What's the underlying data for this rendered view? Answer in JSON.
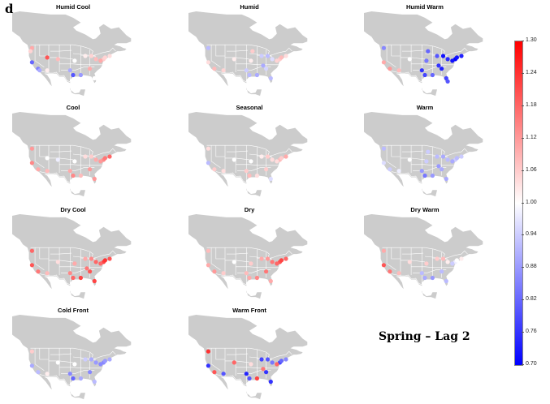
{
  "panel_label": "d",
  "caption": "Spring – Lag 2",
  "colors": {
    "low": "#0000ff",
    "mid": "#ffffff",
    "high": "#ff0000",
    "land": "#cccccc",
    "borders": "#ffffff"
  },
  "colorbar": {
    "min": 0.7,
    "max": 1.3,
    "ticks": [
      "1.30",
      "1.24",
      "1.18",
      "1.12",
      "1.06",
      "1.00",
      "0.94",
      "0.88",
      "0.82",
      "0.76",
      "0.70"
    ]
  },
  "maps": [
    {
      "title": "Humid Cool",
      "points": [
        [
          -122,
          47,
          1.1
        ],
        [
          -123,
          45,
          1.05
        ],
        [
          -122,
          38,
          0.82
        ],
        [
          -118,
          34,
          0.85
        ],
        [
          -117,
          33,
          0.9
        ],
        [
          -112,
          33,
          1.02
        ],
        [
          -105,
          40,
          1.08
        ],
        [
          -97,
          33,
          0.9
        ],
        [
          -95,
          30,
          0.8
        ],
        [
          -90,
          30,
          0.88
        ],
        [
          -84,
          34,
          1.1
        ],
        [
          -87,
          42,
          1.02
        ],
        [
          -83,
          42,
          1.05
        ],
        [
          -80,
          40,
          1.08
        ],
        [
          -75,
          40,
          1.06
        ],
        [
          -74,
          41,
          1.05
        ],
        [
          -71,
          42,
          1.04
        ],
        [
          -77,
          39,
          1.1
        ],
        [
          -81,
          28,
          1.0
        ],
        [
          -112,
          41,
          1.2
        ],
        [
          -94,
          39,
          1.0
        ]
      ]
    },
    {
      "title": "Humid",
      "points": [
        [
          -122,
          47,
          0.92
        ],
        [
          -122,
          38,
          1.04
        ],
        [
          -118,
          34,
          1.08
        ],
        [
          -112,
          33,
          1.05
        ],
        [
          -105,
          40,
          1.02
        ],
        [
          -97,
          33,
          0.94
        ],
        [
          -95,
          30,
          0.92
        ],
        [
          -90,
          30,
          0.9
        ],
        [
          -84,
          34,
          0.95
        ],
        [
          -87,
          42,
          0.94
        ],
        [
          -83,
          42,
          0.92
        ],
        [
          -80,
          40,
          0.96
        ],
        [
          -75,
          40,
          1.06
        ],
        [
          -74,
          41,
          1.08
        ],
        [
          -71,
          42,
          1.04
        ],
        [
          -77,
          39,
          1.05
        ],
        [
          -81,
          28,
          0.92
        ],
        [
          -94,
          39,
          1.02
        ],
        [
          -93,
          45,
          1.06
        ],
        [
          -86,
          36,
          0.9
        ]
      ]
    },
    {
      "title": "Humid Warm",
      "points": [
        [
          -122,
          47,
          0.86
        ],
        [
          -122,
          38,
          1.1
        ],
        [
          -118,
          34,
          1.12
        ],
        [
          -112,
          33,
          1.08
        ],
        [
          -105,
          40,
          1.0
        ],
        [
          -97,
          33,
          0.76
        ],
        [
          -95,
          30,
          0.78
        ],
        [
          -90,
          30,
          0.82
        ],
        [
          -84,
          34,
          0.74
        ],
        [
          -87,
          42,
          0.8
        ],
        [
          -83,
          42,
          0.72
        ],
        [
          -80,
          40,
          0.75
        ],
        [
          -75,
          40,
          0.7
        ],
        [
          -74,
          41,
          0.72
        ],
        [
          -71,
          42,
          0.74
        ],
        [
          -77,
          39,
          0.72
        ],
        [
          -81,
          28,
          0.78
        ],
        [
          -94,
          39,
          0.84
        ],
        [
          -93,
          45,
          0.82
        ],
        [
          -86,
          36,
          0.76
        ],
        [
          -80,
          26,
          0.8
        ]
      ]
    },
    {
      "title": "Cool",
      "points": [
        [
          -122,
          47,
          1.12
        ],
        [
          -122,
          38,
          1.14
        ],
        [
          -118,
          34,
          1.1
        ],
        [
          -112,
          33,
          1.08
        ],
        [
          -105,
          40,
          0.98
        ],
        [
          -97,
          33,
          1.1
        ],
        [
          -95,
          30,
          1.14
        ],
        [
          -90,
          30,
          1.08
        ],
        [
          -84,
          34,
          1.12
        ],
        [
          -87,
          42,
          1.04
        ],
        [
          -83,
          42,
          1.06
        ],
        [
          -80,
          40,
          1.1
        ],
        [
          -75,
          40,
          1.14
        ],
        [
          -74,
          41,
          1.16
        ],
        [
          -71,
          42,
          1.18
        ],
        [
          -77,
          39,
          1.12
        ],
        [
          -81,
          28,
          1.12
        ],
        [
          -94,
          39,
          1.0
        ],
        [
          -112,
          41,
          1.0
        ]
      ]
    },
    {
      "title": "Seasonal",
      "points": [
        [
          -122,
          47,
          1.04
        ],
        [
          -122,
          38,
          0.92
        ],
        [
          -118,
          34,
          1.06
        ],
        [
          -112,
          33,
          1.04
        ],
        [
          -105,
          40,
          1.0
        ],
        [
          -97,
          33,
          1.06
        ],
        [
          -95,
          30,
          1.08
        ],
        [
          -90,
          30,
          1.04
        ],
        [
          -84,
          34,
          1.06
        ],
        [
          -87,
          42,
          1.02
        ],
        [
          -83,
          42,
          1.06
        ],
        [
          -80,
          40,
          1.04
        ],
        [
          -75,
          40,
          1.08
        ],
        [
          -74,
          41,
          1.06
        ],
        [
          -71,
          42,
          1.1
        ],
        [
          -77,
          39,
          1.04
        ],
        [
          -81,
          28,
          0.96
        ],
        [
          -94,
          39,
          1.0
        ]
      ]
    },
    {
      "title": "Warm",
      "points": [
        [
          -122,
          47,
          0.92
        ],
        [
          -122,
          38,
          0.96
        ],
        [
          -118,
          34,
          0.94
        ],
        [
          -112,
          33,
          0.98
        ],
        [
          -105,
          40,
          1.0
        ],
        [
          -97,
          33,
          0.88
        ],
        [
          -95,
          30,
          0.84
        ],
        [
          -90,
          30,
          0.88
        ],
        [
          -84,
          34,
          0.9
        ],
        [
          -87,
          42,
          0.92
        ],
        [
          -83,
          42,
          0.9
        ],
        [
          -80,
          40,
          0.92
        ],
        [
          -75,
          40,
          0.94
        ],
        [
          -74,
          41,
          0.92
        ],
        [
          -71,
          42,
          0.94
        ],
        [
          -77,
          39,
          0.9
        ],
        [
          -81,
          28,
          0.9
        ],
        [
          -94,
          39,
          0.94
        ],
        [
          -93,
          45,
          0.94
        ],
        [
          -86,
          36,
          0.88
        ]
      ]
    },
    {
      "title": "Dry Cool",
      "points": [
        [
          -122,
          47,
          1.18
        ],
        [
          -122,
          38,
          1.2
        ],
        [
          -118,
          34,
          1.16
        ],
        [
          -112,
          33,
          1.08
        ],
        [
          -105,
          40,
          1.04
        ],
        [
          -97,
          33,
          1.14
        ],
        [
          -95,
          30,
          1.18
        ],
        [
          -90,
          30,
          1.22
        ],
        [
          -84,
          34,
          1.2
        ],
        [
          -87,
          42,
          1.1
        ],
        [
          -83,
          42,
          1.14
        ],
        [
          -80,
          40,
          1.18
        ],
        [
          -75,
          40,
          1.22
        ],
        [
          -74,
          41,
          1.24
        ],
        [
          -71,
          42,
          1.2
        ],
        [
          -77,
          39,
          1.18
        ],
        [
          -81,
          28,
          1.22
        ],
        [
          -94,
          39,
          1.1
        ],
        [
          -86,
          36,
          1.16
        ]
      ]
    },
    {
      "title": "Dry",
      "points": [
        [
          -122,
          47,
          1.08
        ],
        [
          -122,
          38,
          1.1
        ],
        [
          -118,
          34,
          1.12
        ],
        [
          -112,
          33,
          1.06
        ],
        [
          -105,
          40,
          1.0
        ],
        [
          -97,
          33,
          1.08
        ],
        [
          -95,
          30,
          1.1
        ],
        [
          -90,
          30,
          1.14
        ],
        [
          -84,
          34,
          1.16
        ],
        [
          -87,
          42,
          1.1
        ],
        [
          -83,
          42,
          1.12
        ],
        [
          -80,
          40,
          1.16
        ],
        [
          -75,
          40,
          1.2
        ],
        [
          -74,
          41,
          1.22
        ],
        [
          -71,
          42,
          1.18
        ],
        [
          -77,
          39,
          1.18
        ],
        [
          -81,
          28,
          1.1
        ],
        [
          -94,
          39,
          1.06
        ]
      ]
    },
    {
      "title": "Dry Warm",
      "points": [
        [
          -122,
          47,
          1.1
        ],
        [
          -122,
          38,
          1.2
        ],
        [
          -118,
          34,
          1.16
        ],
        [
          -112,
          33,
          1.08
        ],
        [
          -105,
          40,
          1.04
        ],
        [
          -97,
          33,
          0.92
        ],
        [
          -95,
          30,
          0.9
        ],
        [
          -90,
          30,
          0.88
        ],
        [
          -84,
          34,
          0.92
        ],
        [
          -87,
          42,
          1.06
        ],
        [
          -83,
          42,
          1.08
        ],
        [
          -80,
          40,
          1.02
        ],
        [
          -75,
          40,
          0.98
        ],
        [
          -74,
          41,
          1.0
        ],
        [
          -71,
          42,
          1.02
        ],
        [
          -77,
          39,
          0.94
        ],
        [
          -81,
          28,
          0.92
        ],
        [
          -94,
          39,
          1.06
        ]
      ]
    },
    {
      "title": "Cold Front",
      "points": [
        [
          -122,
          47,
          1.06
        ],
        [
          -122,
          38,
          0.9
        ],
        [
          -118,
          34,
          0.92
        ],
        [
          -112,
          33,
          1.02
        ],
        [
          -105,
          40,
          1.0
        ],
        [
          -97,
          33,
          0.86
        ],
        [
          -95,
          30,
          0.82
        ],
        [
          -90,
          30,
          0.9
        ],
        [
          -84,
          34,
          0.86
        ],
        [
          -87,
          42,
          0.94
        ],
        [
          -83,
          42,
          0.9
        ],
        [
          -80,
          40,
          0.88
        ],
        [
          -75,
          40,
          0.86
        ],
        [
          -74,
          41,
          0.88
        ],
        [
          -71,
          42,
          0.9
        ],
        [
          -77,
          39,
          0.86
        ],
        [
          -81,
          28,
          0.92
        ],
        [
          -94,
          39,
          1.0
        ]
      ]
    },
    {
      "title": "Warm Front",
      "points": [
        [
          -122,
          47,
          1.24
        ],
        [
          -122,
          38,
          0.76
        ],
        [
          -118,
          34,
          1.2
        ],
        [
          -112,
          33,
          0.8
        ],
        [
          -105,
          40,
          1.18
        ],
        [
          -97,
          33,
          0.74
        ],
        [
          -95,
          30,
          0.8
        ],
        [
          -90,
          30,
          1.22
        ],
        [
          -84,
          34,
          0.76
        ],
        [
          -87,
          42,
          0.78
        ],
        [
          -83,
          42,
          0.8
        ],
        [
          -80,
          40,
          0.84
        ],
        [
          -75,
          40,
          0.78
        ],
        [
          -74,
          41,
          0.82
        ],
        [
          -71,
          42,
          0.86
        ],
        [
          -77,
          39,
          1.18
        ],
        [
          -81,
          28,
          0.76
        ],
        [
          -94,
          39,
          1.04
        ],
        [
          -86,
          36,
          1.16
        ]
      ]
    }
  ]
}
